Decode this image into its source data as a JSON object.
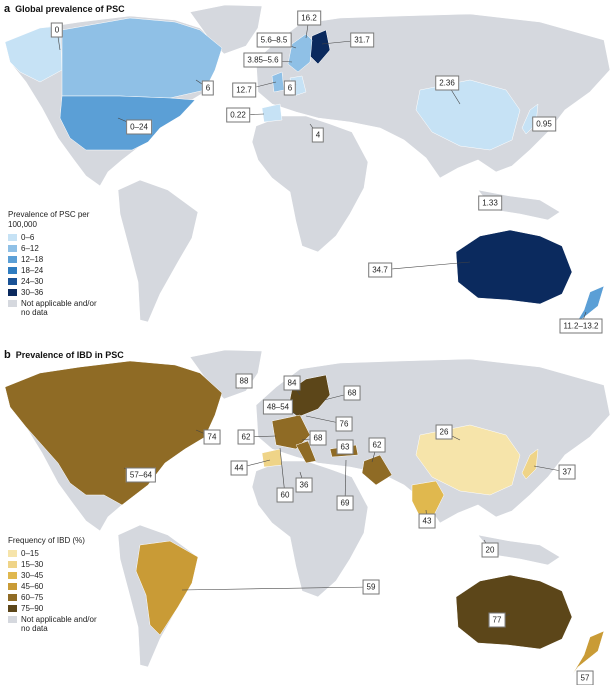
{
  "panels": [
    {
      "letter": "a",
      "title": "Global prevalence of PSC",
      "legend": {
        "title": "Prevalence of PSC per 100,000",
        "items": [
          {
            "label": "0–6",
            "color": "#c6e2f5"
          },
          {
            "label": "6–12",
            "color": "#8fc0e6"
          },
          {
            "label": "12–18",
            "color": "#5b9fd6"
          },
          {
            "label": "18–24",
            "color": "#2f7cc0"
          },
          {
            "label": "24–30",
            "color": "#1a5296"
          },
          {
            "label": "30–36",
            "color": "#0b2a5e"
          },
          {
            "label": "Not applicable and/or no data",
            "color": "#d5d8de"
          }
        ]
      },
      "callouts": [
        "0",
        "16.2",
        "5.6–8.5",
        "31.7",
        "3.85–5.6",
        "6",
        "12.7",
        "6",
        "0.22",
        "0–24",
        "2.36",
        "0.95",
        "4",
        "1.33",
        "34.7",
        "11.2–13.2"
      ]
    },
    {
      "letter": "b",
      "title": "Prevalence of IBD in PSC",
      "legend": {
        "title": "Frequency of IBD (%)",
        "items": [
          {
            "label": "0–15",
            "color": "#f6e4aa"
          },
          {
            "label": "15–30",
            "color": "#efd488"
          },
          {
            "label": "30–45",
            "color": "#e0b84e"
          },
          {
            "label": "45–60",
            "color": "#c99b36"
          },
          {
            "label": "60–75",
            "color": "#8f6b25"
          },
          {
            "label": "75–90",
            "color": "#5c4619"
          },
          {
            "label": "Not applicable and/or no data",
            "color": "#d5d8de"
          }
        ]
      },
      "callouts": [
        "88",
        "84",
        "68",
        "48–54",
        "76",
        "74",
        "62",
        "68",
        "63",
        "62",
        "26",
        "44",
        "57–64",
        "36",
        "60",
        "69",
        "43",
        "37",
        "20",
        "59",
        "77",
        "57"
      ]
    }
  ]
}
